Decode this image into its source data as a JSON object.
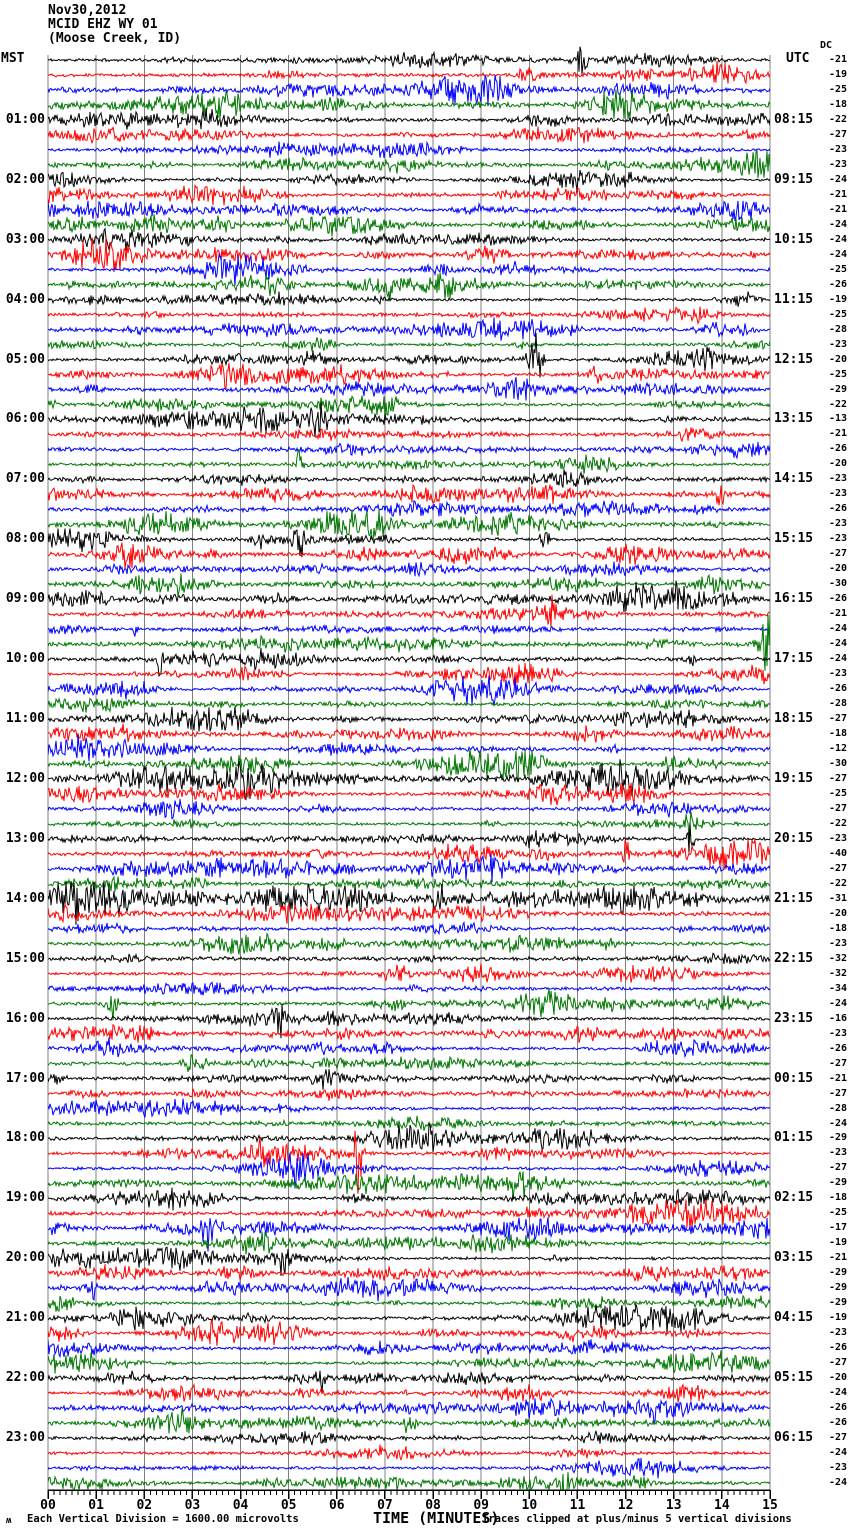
{
  "header": {
    "date": "Nov30,2012",
    "station": "MCID EHZ WY 01",
    "location": "(Moose Creek, ID)",
    "left_tz": "MST",
    "right_tz": "UTC",
    "dc_label": "DC"
  },
  "x_axis": {
    "title": "TIME (MINUTES)",
    "labels": [
      "00",
      "01",
      "02",
      "03",
      "04",
      "05",
      "06",
      "07",
      "08",
      "09",
      "10",
      "11",
      "12",
      "13",
      "14",
      "15"
    ]
  },
  "footer": {
    "watermark": "ʍ",
    "scale_note": "Each Vertical Division = 1600.00 microvolts",
    "clip_note": "Traces clipped at plus/minus 5 vertical divisions"
  },
  "palette": {
    "trace_colors": [
      "#000000",
      "#ff0000",
      "#0000ff",
      "#007700"
    ],
    "grid": "#808080",
    "axis": "#000000"
  },
  "chart_data": {
    "type": "line",
    "description": "24-hour helicorder seismogram; each row is one 15-minute seismic trace, rows cycle black/red/blue/green, left labels MST, right labels UTC, rightmost column DC offset per trace",
    "x_range_minutes": [
      0,
      15
    ],
    "minutes_per_row": 15,
    "row_color_cycle": [
      "black",
      "red",
      "blue",
      "green"
    ],
    "rows": [
      {
        "mst": "",
        "utc": "",
        "color": "black",
        "dc": -21
      },
      {
        "mst": "",
        "utc": "",
        "color": "red",
        "dc": -19
      },
      {
        "mst": "",
        "utc": "",
        "color": "blue",
        "dc": -25
      },
      {
        "mst": "",
        "utc": "",
        "color": "green",
        "dc": -18
      },
      {
        "mst": "01:00",
        "utc": "08:15",
        "color": "black",
        "dc": -22
      },
      {
        "mst": "",
        "utc": "",
        "color": "red",
        "dc": -27
      },
      {
        "mst": "",
        "utc": "",
        "color": "blue",
        "dc": -23
      },
      {
        "mst": "",
        "utc": "",
        "color": "green",
        "dc": -23
      },
      {
        "mst": "02:00",
        "utc": "09:15",
        "color": "black",
        "dc": -24
      },
      {
        "mst": "",
        "utc": "",
        "color": "red",
        "dc": -21
      },
      {
        "mst": "",
        "utc": "",
        "color": "blue",
        "dc": -21
      },
      {
        "mst": "",
        "utc": "",
        "color": "green",
        "dc": -24
      },
      {
        "mst": "03:00",
        "utc": "10:15",
        "color": "black",
        "dc": -24
      },
      {
        "mst": "",
        "utc": "",
        "color": "red",
        "dc": -24
      },
      {
        "mst": "",
        "utc": "",
        "color": "blue",
        "dc": -25
      },
      {
        "mst": "",
        "utc": "",
        "color": "green",
        "dc": -26
      },
      {
        "mst": "04:00",
        "utc": "11:15",
        "color": "black",
        "dc": -19
      },
      {
        "mst": "",
        "utc": "",
        "color": "red",
        "dc": -25
      },
      {
        "mst": "",
        "utc": "",
        "color": "blue",
        "dc": -28
      },
      {
        "mst": "",
        "utc": "",
        "color": "green",
        "dc": -23
      },
      {
        "mst": "05:00",
        "utc": "12:15",
        "color": "black",
        "dc": -20
      },
      {
        "mst": "",
        "utc": "",
        "color": "red",
        "dc": -25
      },
      {
        "mst": "",
        "utc": "",
        "color": "blue",
        "dc": -29
      },
      {
        "mst": "",
        "utc": "",
        "color": "green",
        "dc": -22
      },
      {
        "mst": "06:00",
        "utc": "13:15",
        "color": "black",
        "dc": -13
      },
      {
        "mst": "",
        "utc": "",
        "color": "red",
        "dc": -21
      },
      {
        "mst": "",
        "utc": "",
        "color": "blue",
        "dc": -26
      },
      {
        "mst": "",
        "utc": "",
        "color": "green",
        "dc": -20
      },
      {
        "mst": "07:00",
        "utc": "14:15",
        "color": "black",
        "dc": -23
      },
      {
        "mst": "",
        "utc": "",
        "color": "red",
        "dc": -23
      },
      {
        "mst": "",
        "utc": "",
        "color": "blue",
        "dc": -26
      },
      {
        "mst": "",
        "utc": "",
        "color": "green",
        "dc": -23
      },
      {
        "mst": "08:00",
        "utc": "15:15",
        "color": "black",
        "dc": -23
      },
      {
        "mst": "",
        "utc": "",
        "color": "red",
        "dc": -27
      },
      {
        "mst": "",
        "utc": "",
        "color": "blue",
        "dc": -20
      },
      {
        "mst": "",
        "utc": "",
        "color": "green",
        "dc": -30
      },
      {
        "mst": "09:00",
        "utc": "16:15",
        "color": "black",
        "dc": -26
      },
      {
        "mst": "",
        "utc": "",
        "color": "red",
        "dc": -21
      },
      {
        "mst": "",
        "utc": "",
        "color": "blue",
        "dc": -24
      },
      {
        "mst": "",
        "utc": "",
        "color": "green",
        "dc": -24
      },
      {
        "mst": "10:00",
        "utc": "17:15",
        "color": "black",
        "dc": -24
      },
      {
        "mst": "",
        "utc": "",
        "color": "red",
        "dc": -23
      },
      {
        "mst": "",
        "utc": "",
        "color": "blue",
        "dc": -26
      },
      {
        "mst": "",
        "utc": "",
        "color": "green",
        "dc": -28
      },
      {
        "mst": "11:00",
        "utc": "18:15",
        "color": "black",
        "dc": -27
      },
      {
        "mst": "",
        "utc": "",
        "color": "red",
        "dc": -18
      },
      {
        "mst": "",
        "utc": "",
        "color": "blue",
        "dc": -12
      },
      {
        "mst": "",
        "utc": "",
        "color": "green",
        "dc": -30
      },
      {
        "mst": "12:00",
        "utc": "19:15",
        "color": "black",
        "dc": -27
      },
      {
        "mst": "",
        "utc": "",
        "color": "red",
        "dc": -25
      },
      {
        "mst": "",
        "utc": "",
        "color": "blue",
        "dc": -27
      },
      {
        "mst": "",
        "utc": "",
        "color": "green",
        "dc": -22
      },
      {
        "mst": "13:00",
        "utc": "20:15",
        "color": "black",
        "dc": -23
      },
      {
        "mst": "",
        "utc": "",
        "color": "red",
        "dc": -40
      },
      {
        "mst": "",
        "utc": "",
        "color": "blue",
        "dc": -27
      },
      {
        "mst": "",
        "utc": "",
        "color": "green",
        "dc": -22
      },
      {
        "mst": "14:00",
        "utc": "21:15",
        "color": "black",
        "dc": -31
      },
      {
        "mst": "",
        "utc": "",
        "color": "red",
        "dc": -20
      },
      {
        "mst": "",
        "utc": "",
        "color": "blue",
        "dc": -18
      },
      {
        "mst": "",
        "utc": "",
        "color": "green",
        "dc": -23
      },
      {
        "mst": "15:00",
        "utc": "22:15",
        "color": "black",
        "dc": -32
      },
      {
        "mst": "",
        "utc": "",
        "color": "red",
        "dc": -32
      },
      {
        "mst": "",
        "utc": "",
        "color": "blue",
        "dc": -34
      },
      {
        "mst": "",
        "utc": "",
        "color": "green",
        "dc": -24
      },
      {
        "mst": "16:00",
        "utc": "23:15",
        "color": "black",
        "dc": -16
      },
      {
        "mst": "",
        "utc": "",
        "color": "red",
        "dc": -23
      },
      {
        "mst": "",
        "utc": "",
        "color": "blue",
        "dc": -26
      },
      {
        "mst": "",
        "utc": "",
        "color": "green",
        "dc": -27
      },
      {
        "mst": "17:00",
        "utc": "00:15",
        "color": "black",
        "dc": -21
      },
      {
        "mst": "",
        "utc": "",
        "color": "red",
        "dc": -27
      },
      {
        "mst": "",
        "utc": "",
        "color": "blue",
        "dc": -28
      },
      {
        "mst": "",
        "utc": "",
        "color": "green",
        "dc": -24
      },
      {
        "mst": "18:00",
        "utc": "01:15",
        "color": "black",
        "dc": -29
      },
      {
        "mst": "",
        "utc": "",
        "color": "red",
        "dc": -23
      },
      {
        "mst": "",
        "utc": "",
        "color": "blue",
        "dc": -27
      },
      {
        "mst": "",
        "utc": "",
        "color": "green",
        "dc": -29
      },
      {
        "mst": "19:00",
        "utc": "02:15",
        "color": "black",
        "dc": -18
      },
      {
        "mst": "",
        "utc": "",
        "color": "red",
        "dc": -25
      },
      {
        "mst": "",
        "utc": "",
        "color": "blue",
        "dc": -17
      },
      {
        "mst": "",
        "utc": "",
        "color": "green",
        "dc": -19
      },
      {
        "mst": "20:00",
        "utc": "03:15",
        "color": "black",
        "dc": -21
      },
      {
        "mst": "",
        "utc": "",
        "color": "red",
        "dc": -29
      },
      {
        "mst": "",
        "utc": "",
        "color": "blue",
        "dc": -29
      },
      {
        "mst": "",
        "utc": "",
        "color": "green",
        "dc": -29
      },
      {
        "mst": "21:00",
        "utc": "04:15",
        "color": "black",
        "dc": -19
      },
      {
        "mst": "",
        "utc": "",
        "color": "red",
        "dc": -23
      },
      {
        "mst": "",
        "utc": "",
        "color": "blue",
        "dc": -26
      },
      {
        "mst": "",
        "utc": "",
        "color": "green",
        "dc": -27
      },
      {
        "mst": "22:00",
        "utc": "05:15",
        "color": "black",
        "dc": -20
      },
      {
        "mst": "",
        "utc": "",
        "color": "red",
        "dc": -24
      },
      {
        "mst": "",
        "utc": "",
        "color": "blue",
        "dc": -26
      },
      {
        "mst": "",
        "utc": "",
        "color": "green",
        "dc": -26
      },
      {
        "mst": "23:00",
        "utc": "06:15",
        "color": "black",
        "dc": -27
      },
      {
        "mst": "",
        "utc": "",
        "color": "red",
        "dc": -24
      },
      {
        "mst": "",
        "utc": "",
        "color": "blue",
        "dc": -23
      },
      {
        "mst": "",
        "utc": "",
        "color": "green",
        "dc": -24
      }
    ]
  }
}
